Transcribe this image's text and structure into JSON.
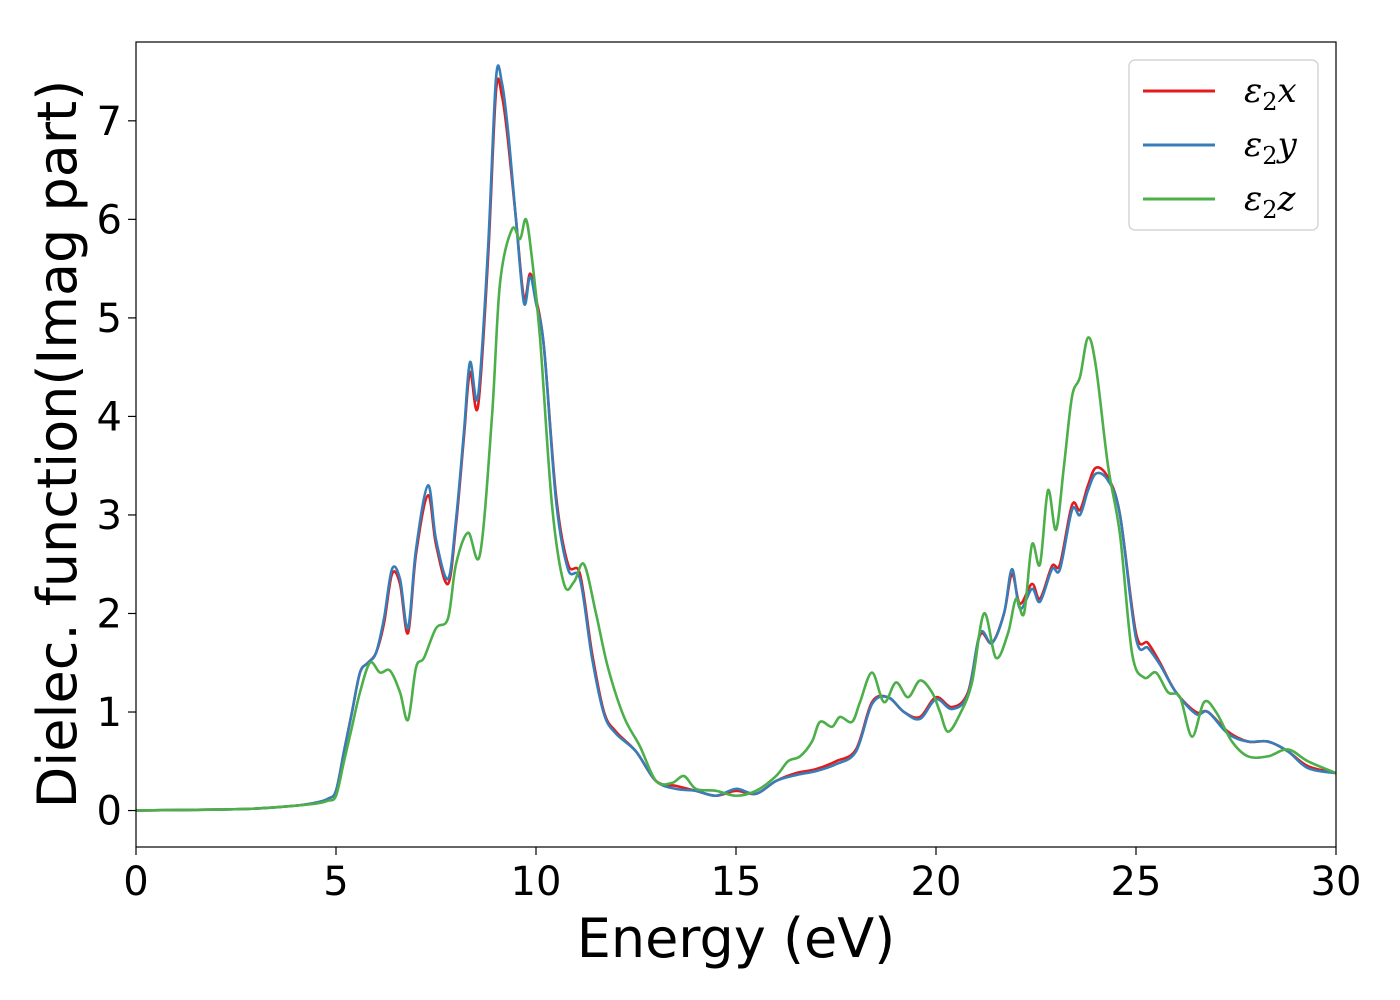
{
  "chart_data": {
    "type": "line",
    "title": "",
    "xlabel": "Energy (eV)",
    "ylabel": "Dielec. function(Imag part)",
    "xlim": [
      0,
      30
    ],
    "ylim": [
      -0.37,
      7.8
    ],
    "xticks": [
      0,
      5,
      10,
      15,
      20,
      25,
      30
    ],
    "yticks": [
      0,
      1,
      2,
      3,
      4,
      5,
      6,
      7
    ],
    "grid": false,
    "legend_position": "top-right",
    "series": [
      {
        "name": "ε2x",
        "legend_base": "ε",
        "legend_sub": "2",
        "legend_var": "x",
        "color": "#e41a1c",
        "x": [
          0,
          1,
          2,
          3,
          4,
          4.5,
          4.8,
          5.0,
          5.2,
          5.4,
          5.6,
          5.8,
          6.0,
          6.2,
          6.4,
          6.6,
          6.8,
          7.0,
          7.3,
          7.5,
          7.8,
          8.0,
          8.2,
          8.35,
          8.55,
          8.8,
          9.0,
          9.15,
          9.3,
          9.5,
          9.7,
          9.85,
          10.0,
          10.2,
          10.5,
          10.8,
          11.1,
          11.4,
          11.7,
          12.0,
          12.5,
          13.0,
          13.5,
          14.0,
          14.5,
          15.0,
          15.5,
          16.0,
          16.5,
          17.0,
          17.5,
          18.0,
          18.4,
          18.8,
          19.2,
          19.6,
          20.0,
          20.4,
          20.8,
          21.1,
          21.4,
          21.7,
          21.9,
          22.1,
          22.4,
          22.6,
          22.9,
          23.1,
          23.4,
          23.6,
          23.8,
          24.0,
          24.3,
          24.6,
          25.0,
          25.3,
          25.6,
          26.0,
          26.5,
          26.8,
          27.3,
          27.8,
          28.3,
          28.8,
          29.3,
          30.0
        ],
        "y": [
          0,
          0.005,
          0.01,
          0.02,
          0.05,
          0.08,
          0.12,
          0.2,
          0.6,
          1.0,
          1.4,
          1.5,
          1.6,
          1.9,
          2.4,
          2.3,
          1.8,
          2.6,
          3.2,
          2.7,
          2.3,
          2.9,
          3.8,
          4.45,
          4.1,
          5.6,
          7.3,
          7.25,
          6.8,
          6.0,
          5.2,
          5.45,
          5.2,
          4.7,
          3.2,
          2.5,
          2.4,
          1.6,
          1.0,
          0.8,
          0.6,
          0.3,
          0.25,
          0.2,
          0.15,
          0.2,
          0.17,
          0.3,
          0.38,
          0.42,
          0.5,
          0.62,
          1.1,
          1.15,
          1.0,
          0.95,
          1.15,
          1.05,
          1.2,
          1.78,
          1.7,
          2.0,
          2.4,
          2.1,
          2.3,
          2.15,
          2.48,
          2.5,
          3.1,
          3.05,
          3.3,
          3.48,
          3.38,
          3.0,
          1.8,
          1.7,
          1.5,
          1.2,
          1.0,
          1.0,
          0.8,
          0.7,
          0.7,
          0.6,
          0.45,
          0.38
        ]
      },
      {
        "name": "ε2y",
        "legend_base": "ε",
        "legend_sub": "2",
        "legend_var": "y",
        "color": "#377eb8",
        "x": [
          0,
          1,
          2,
          3,
          4,
          4.5,
          4.8,
          5.0,
          5.2,
          5.4,
          5.6,
          5.8,
          6.0,
          6.2,
          6.4,
          6.6,
          6.8,
          7.0,
          7.3,
          7.5,
          7.8,
          8.0,
          8.2,
          8.35,
          8.55,
          8.8,
          9.0,
          9.15,
          9.3,
          9.5,
          9.7,
          9.85,
          10.0,
          10.2,
          10.5,
          10.8,
          11.1,
          11.4,
          11.7,
          12.0,
          12.5,
          13.0,
          13.5,
          14.0,
          14.5,
          15.0,
          15.5,
          16.0,
          16.5,
          17.0,
          17.5,
          18.0,
          18.4,
          18.8,
          19.2,
          19.6,
          20.0,
          20.4,
          20.8,
          21.1,
          21.4,
          21.7,
          21.9,
          22.1,
          22.4,
          22.6,
          22.9,
          23.1,
          23.4,
          23.6,
          23.8,
          24.0,
          24.3,
          24.6,
          25.0,
          25.3,
          25.6,
          26.0,
          26.5,
          26.8,
          27.3,
          27.8,
          28.3,
          28.8,
          29.3,
          30.0
        ],
        "y": [
          0,
          0.005,
          0.01,
          0.02,
          0.05,
          0.08,
          0.12,
          0.2,
          0.6,
          1.0,
          1.4,
          1.5,
          1.6,
          1.95,
          2.45,
          2.35,
          1.85,
          2.65,
          3.3,
          2.75,
          2.35,
          2.95,
          3.85,
          4.55,
          4.2,
          5.7,
          7.43,
          7.38,
          6.9,
          6.0,
          5.15,
          5.42,
          5.15,
          4.7,
          3.15,
          2.45,
          2.35,
          1.55,
          0.98,
          0.78,
          0.6,
          0.3,
          0.22,
          0.2,
          0.15,
          0.22,
          0.17,
          0.3,
          0.36,
          0.4,
          0.47,
          0.6,
          1.08,
          1.15,
          1.0,
          0.93,
          1.13,
          1.03,
          1.18,
          1.8,
          1.7,
          2.0,
          2.45,
          2.05,
          2.25,
          2.12,
          2.45,
          2.45,
          3.05,
          3.0,
          3.25,
          3.42,
          3.35,
          3.0,
          1.75,
          1.65,
          1.48,
          1.2,
          0.98,
          1.0,
          0.78,
          0.7,
          0.7,
          0.6,
          0.43,
          0.38
        ]
      },
      {
        "name": "ε2z",
        "legend_base": "ε",
        "legend_sub": "2",
        "legend_var": "z",
        "color": "#4daf4a",
        "x": [
          0,
          1,
          2,
          3,
          4,
          4.5,
          4.8,
          5.0,
          5.2,
          5.4,
          5.6,
          5.85,
          6.1,
          6.35,
          6.6,
          6.8,
          7.0,
          7.2,
          7.5,
          7.8,
          8.0,
          8.3,
          8.6,
          8.9,
          9.1,
          9.4,
          9.6,
          9.75,
          9.9,
          10.1,
          10.4,
          10.7,
          10.95,
          11.2,
          11.5,
          11.8,
          12.2,
          12.6,
          13.0,
          13.4,
          13.7,
          14.0,
          14.5,
          15.0,
          15.5,
          16.0,
          16.3,
          16.6,
          16.9,
          17.1,
          17.4,
          17.6,
          17.9,
          18.1,
          18.4,
          18.7,
          19.0,
          19.3,
          19.6,
          19.9,
          20.1,
          20.3,
          20.6,
          20.9,
          21.2,
          21.5,
          21.8,
          22.0,
          22.2,
          22.4,
          22.6,
          22.8,
          23.0,
          23.2,
          23.4,
          23.6,
          23.8,
          24.0,
          24.3,
          24.6,
          24.9,
          25.2,
          25.5,
          25.8,
          26.1,
          26.4,
          26.7,
          27.0,
          27.4,
          27.8,
          28.3,
          28.8,
          29.3,
          30.0
        ],
        "y": [
          0,
          0.005,
          0.01,
          0.02,
          0.05,
          0.07,
          0.1,
          0.15,
          0.5,
          0.85,
          1.2,
          1.5,
          1.4,
          1.42,
          1.2,
          0.92,
          1.45,
          1.55,
          1.85,
          1.95,
          2.5,
          2.82,
          2.6,
          4.0,
          5.35,
          5.9,
          5.8,
          6.0,
          5.6,
          4.8,
          3.1,
          2.3,
          2.32,
          2.5,
          2.0,
          1.45,
          0.95,
          0.65,
          0.3,
          0.28,
          0.35,
          0.22,
          0.2,
          0.15,
          0.2,
          0.35,
          0.5,
          0.55,
          0.7,
          0.9,
          0.85,
          0.95,
          0.9,
          1.1,
          1.4,
          1.1,
          1.3,
          1.15,
          1.32,
          1.2,
          1.0,
          0.8,
          0.98,
          1.3,
          2.0,
          1.55,
          1.8,
          2.15,
          2.0,
          2.7,
          2.5,
          3.25,
          2.85,
          3.5,
          4.2,
          4.4,
          4.8,
          4.5,
          3.5,
          2.8,
          1.6,
          1.35,
          1.4,
          1.2,
          1.15,
          0.75,
          1.1,
          1.0,
          0.7,
          0.55,
          0.55,
          0.62,
          0.5,
          0.38
        ]
      }
    ]
  }
}
